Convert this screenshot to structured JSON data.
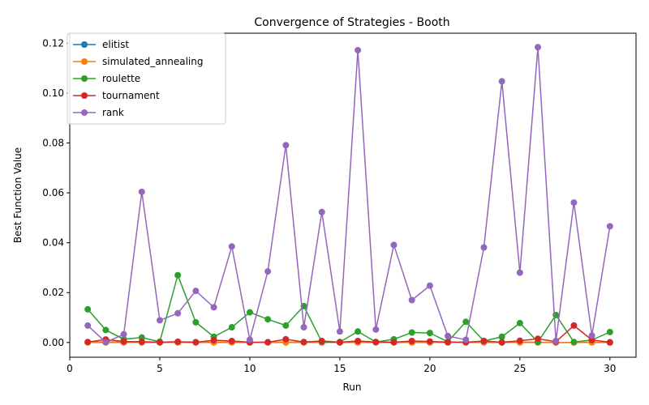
{
  "chart_data": {
    "type": "line",
    "title": "Convergence of Strategies - Booth",
    "xlabel": "Run",
    "ylabel": "Best Function Value",
    "xlim": [
      0,
      31.45
    ],
    "ylim": [
      -0.0059,
      0.124
    ],
    "x_ticks": [
      0,
      5,
      10,
      15,
      20,
      25,
      30
    ],
    "y_ticks": [
      0.0,
      0.02,
      0.04,
      0.06,
      0.08,
      0.1,
      0.12
    ],
    "y_tick_labels": [
      "0.00",
      "0.02",
      "0.04",
      "0.06",
      "0.08",
      "0.10",
      "0.12"
    ],
    "legend_position": "top-left",
    "grid": false,
    "x": [
      1,
      2,
      3,
      4,
      5,
      6,
      7,
      8,
      9,
      10,
      11,
      12,
      13,
      14,
      15,
      16,
      17,
      18,
      19,
      20,
      21,
      22,
      23,
      24,
      25,
      26,
      27,
      28,
      29,
      30
    ],
    "series": [
      {
        "name": "elitist",
        "color": "#1f77b4",
        "values": [
          0.0001,
          0.0002,
          0.0001,
          0.0001,
          0.0,
          0.0001,
          0.0001,
          0.0001,
          0.0001,
          0.0,
          0.0001,
          0.0001,
          0.0001,
          0.0001,
          0.0,
          0.0001,
          0.0001,
          0.0001,
          0.0001,
          0.0001,
          0.0,
          0.0001,
          0.0001,
          0.0,
          0.0001,
          0.0001,
          0.0,
          0.0,
          0.0001,
          0.0
        ]
      },
      {
        "name": "simulated_annealing",
        "color": "#ff7f0e",
        "values": [
          0.0,
          0.0,
          0.0,
          0.0,
          0.0,
          0.0,
          0.0,
          0.0,
          0.0,
          0.0,
          0.0,
          0.0,
          0.0,
          0.0,
          0.0,
          0.0,
          0.0,
          0.0,
          0.0,
          0.0,
          0.0,
          0.0,
          0.0,
          0.0,
          0.0,
          0.0,
          0.0,
          0.0,
          0.0,
          0.0
        ]
      },
      {
        "name": "roulette",
        "color": "#2ca02c",
        "values": [
          0.0133,
          0.005,
          0.0013,
          0.002,
          0.0003,
          0.027,
          0.0081,
          0.0023,
          0.0061,
          0.0121,
          0.0093,
          0.0068,
          0.0146,
          0.0002,
          0.0002,
          0.0044,
          0.0002,
          0.0013,
          0.004,
          0.0038,
          0.0003,
          0.0083,
          0.0006,
          0.0023,
          0.0078,
          0.0002,
          0.011,
          0.0002,
          0.001,
          0.0042
        ]
      },
      {
        "name": "tournament",
        "color": "#d62728",
        "values": [
          0.0002,
          0.0012,
          0.0004,
          0.0003,
          0.0001,
          0.0003,
          0.0001,
          0.0009,
          0.0006,
          0.0001,
          0.0001,
          0.0013,
          0.0002,
          0.0006,
          0.0001,
          0.0006,
          0.0002,
          0.0001,
          0.0006,
          0.0004,
          0.0002,
          0.0001,
          0.0006,
          0.0001,
          0.0007,
          0.0015,
          0.0003,
          0.0068,
          0.001,
          0.0001
        ]
      },
      {
        "name": "rank",
        "color": "#9467bd",
        "values": [
          0.0068,
          0.0001,
          0.0033,
          0.0604,
          0.0089,
          0.0117,
          0.0207,
          0.0141,
          0.0385,
          0.0011,
          0.0285,
          0.0791,
          0.0061,
          0.0523,
          0.0044,
          0.1172,
          0.0052,
          0.0391,
          0.017,
          0.0228,
          0.0026,
          0.0011,
          0.0381,
          0.1047,
          0.028,
          0.1184,
          0.0006,
          0.0561,
          0.0028,
          0.0466
        ]
      }
    ]
  }
}
